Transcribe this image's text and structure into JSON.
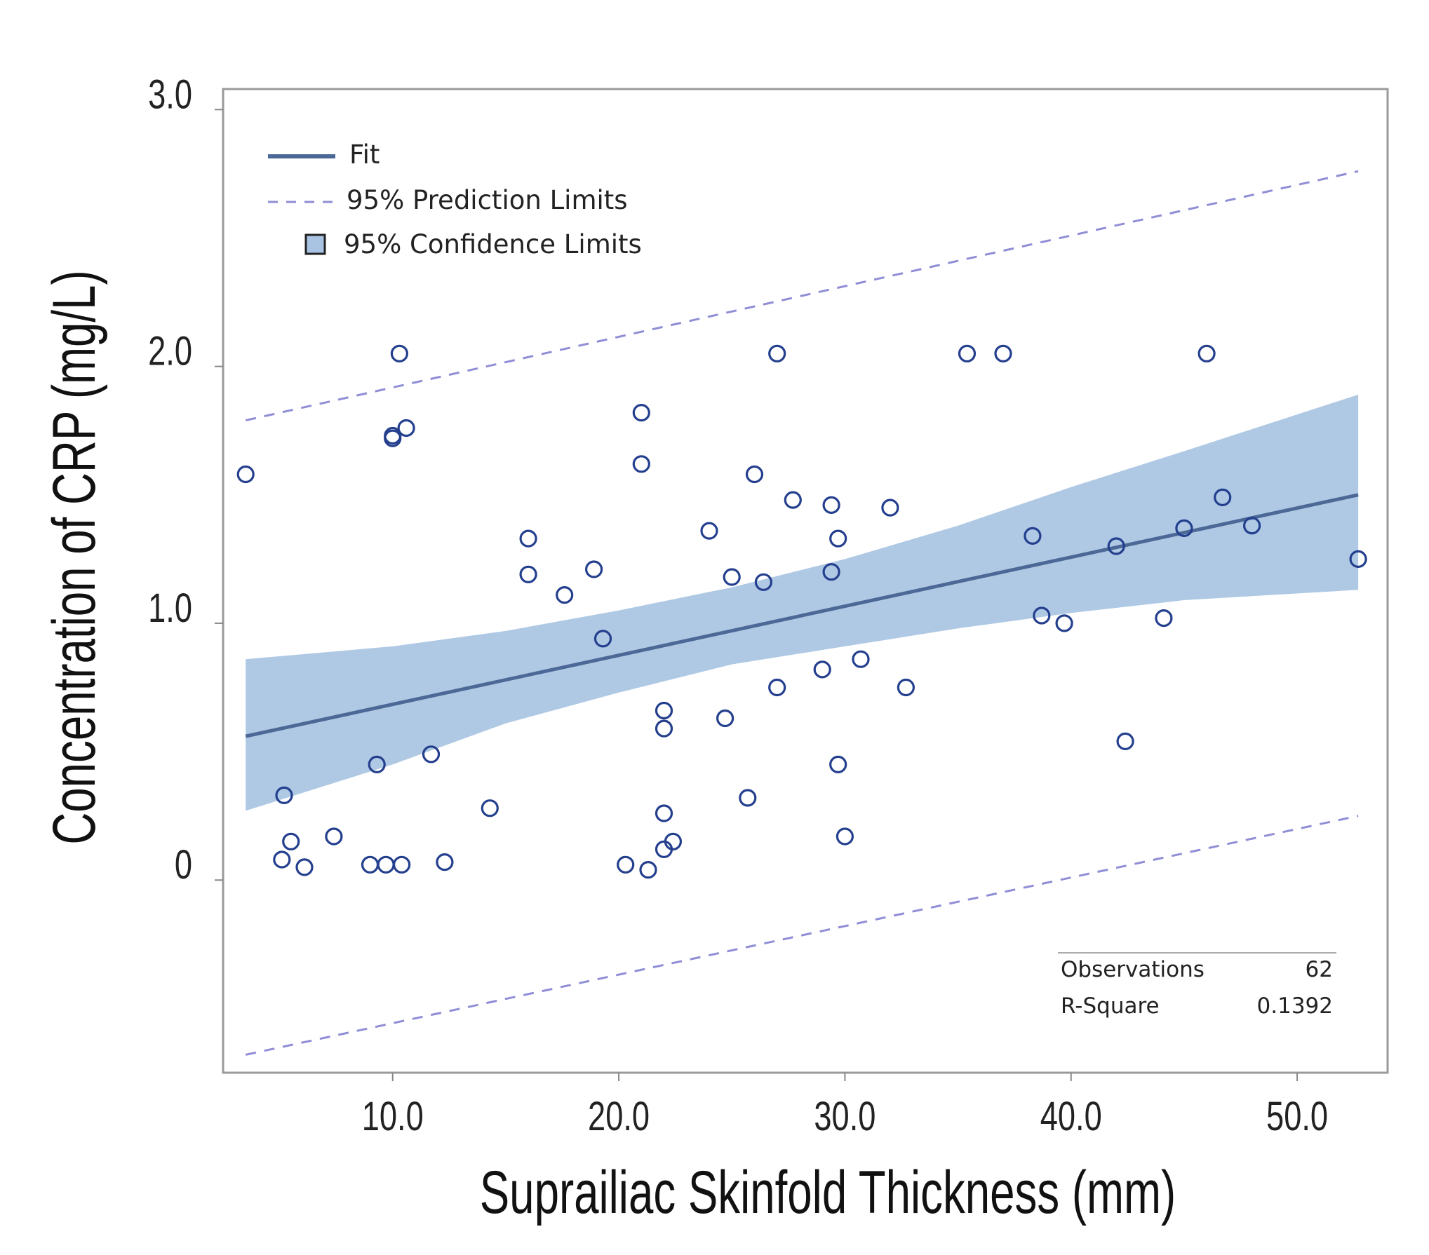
{
  "chart_data": {
    "type": "scatter",
    "title": "",
    "xlabel": "Suprailiac Skinfold Thickness (mm)",
    "ylabel": "Concentration of CRP (mg/L)",
    "xlim": [
      2.5,
      54.0
    ],
    "ylim": [
      -0.75,
      3.08
    ],
    "x_ticks": [
      10,
      20,
      30,
      40,
      50
    ],
    "x_tick_labels": [
      "10.0",
      "20.0",
      "30.0",
      "40.0",
      "50.0"
    ],
    "y_ticks": [
      0,
      1,
      2,
      3
    ],
    "y_tick_labels": [
      "0",
      "1.0",
      "2.0",
      "3.0"
    ],
    "grid": false,
    "legend_position": "top-left",
    "legend": [
      {
        "label": "Fit",
        "kind": "line"
      },
      {
        "label": "95% Prediction Limits",
        "kind": "dashed"
      },
      {
        "label": "95% Confidence Limits",
        "kind": "band"
      }
    ],
    "fit_line": {
      "x": [
        3.5,
        52.7
      ],
      "y": [
        0.56,
        1.5
      ]
    },
    "prediction_limits": {
      "upper": {
        "x": [
          3.5,
          52.7
        ],
        "y": [
          1.79,
          2.76
        ]
      },
      "lower": {
        "x": [
          3.5,
          52.7
        ],
        "y": [
          -0.68,
          0.25
        ]
      }
    },
    "confidence_band": {
      "x": [
        3.5,
        10,
        15,
        20,
        25,
        30,
        35,
        40,
        45,
        52.7
      ],
      "upper": [
        0.86,
        0.91,
        0.97,
        1.05,
        1.14,
        1.25,
        1.38,
        1.53,
        1.67,
        1.89
      ],
      "lower": [
        0.27,
        0.45,
        0.61,
        0.73,
        0.84,
        0.91,
        0.98,
        1.04,
        1.09,
        1.13
      ]
    },
    "series": [
      {
        "name": "Observations",
        "points": [
          [
            3.5,
            1.58
          ],
          [
            10.0,
            1.73
          ],
          [
            10.3,
            2.05
          ],
          [
            10.6,
            1.76
          ],
          [
            10.0,
            1.72
          ],
          [
            5.2,
            0.33
          ],
          [
            5.1,
            0.08
          ],
          [
            5.5,
            0.15
          ],
          [
            6.1,
            0.05
          ],
          [
            7.4,
            0.17
          ],
          [
            9.0,
            0.06
          ],
          [
            9.3,
            0.45
          ],
          [
            9.7,
            0.06
          ],
          [
            10.4,
            0.06
          ],
          [
            11.7,
            0.49
          ],
          [
            12.3,
            0.07
          ],
          [
            14.3,
            0.28
          ],
          [
            16.0,
            1.33
          ],
          [
            16.0,
            1.19
          ],
          [
            17.6,
            1.11
          ],
          [
            18.9,
            1.21
          ],
          [
            19.3,
            0.94
          ],
          [
            20.3,
            0.06
          ],
          [
            21.0,
            1.82
          ],
          [
            21.0,
            1.62
          ],
          [
            21.3,
            0.04
          ],
          [
            22.0,
            0.66
          ],
          [
            22.0,
            0.59
          ],
          [
            22.0,
            0.26
          ],
          [
            22.0,
            0.12
          ],
          [
            22.4,
            0.15
          ],
          [
            24.0,
            1.36
          ],
          [
            24.7,
            0.63
          ],
          [
            25.0,
            1.18
          ],
          [
            25.7,
            0.32
          ],
          [
            26.0,
            1.58
          ],
          [
            26.4,
            1.16
          ],
          [
            27.0,
            2.05
          ],
          [
            27.0,
            0.75
          ],
          [
            27.7,
            1.48
          ],
          [
            29.0,
            0.82
          ],
          [
            29.4,
            1.46
          ],
          [
            29.4,
            1.2
          ],
          [
            29.7,
            1.33
          ],
          [
            29.7,
            0.45
          ],
          [
            30.0,
            0.17
          ],
          [
            30.7,
            0.86
          ],
          [
            32.0,
            1.45
          ],
          [
            32.7,
            0.75
          ],
          [
            35.4,
            2.05
          ],
          [
            37.0,
            2.05
          ],
          [
            38.3,
            1.34
          ],
          [
            38.7,
            1.03
          ],
          [
            39.7,
            1.0
          ],
          [
            42.0,
            1.3
          ],
          [
            42.4,
            0.54
          ],
          [
            44.1,
            1.02
          ],
          [
            45.0,
            1.37
          ],
          [
            46.0,
            2.05
          ],
          [
            46.7,
            1.49
          ],
          [
            48.0,
            1.38
          ],
          [
            52.7,
            1.25
          ]
        ]
      }
    ],
    "stats": [
      {
        "label": "Observations",
        "value": "62"
      },
      {
        "label": "R-Square",
        "value": "0.1392"
      }
    ],
    "colors": {
      "fit": "#4c6896",
      "band": "#a8c4e2",
      "prediction": "#8f8ed6",
      "marker": "#243f8e",
      "frame": "#9a9a9a"
    }
  }
}
